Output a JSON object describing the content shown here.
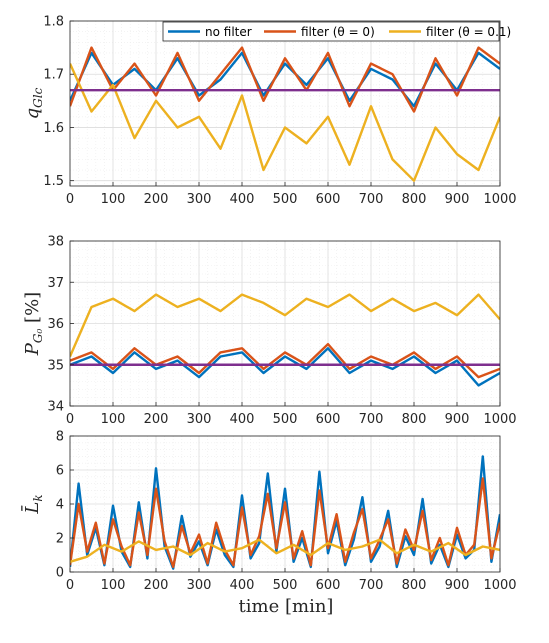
{
  "colors": {
    "no_filter": "#0072BD",
    "filter_0": "#D95319",
    "filter_01": "#EDB120",
    "reference": "#7E2F8E"
  },
  "legend": {
    "placement": "top-right",
    "items": [
      {
        "label": "no filter",
        "color": "#0072BD"
      },
      {
        "label": "filter (θ = 0)",
        "color": "#D95319"
      },
      {
        "label": "filter (θ = 0.1)",
        "color": "#EDB120"
      }
    ]
  },
  "chart_data": [
    {
      "type": "line",
      "ylabel_main": "q",
      "ylabel_sub": "Glc",
      "xlabel": "",
      "xlim": [
        0,
        1000
      ],
      "ylim": [
        1.49,
        1.8
      ],
      "xticks": [
        0,
        100,
        200,
        300,
        400,
        500,
        600,
        700,
        800,
        900,
        1000
      ],
      "yticks": [
        1.5,
        1.6,
        1.7,
        1.8
      ],
      "ytick_labels": [
        "1.5",
        "1.6",
        "1.7",
        "1.8"
      ],
      "grid": true,
      "reference": 1.67,
      "series": [
        {
          "name": "no filter",
          "key": "no_filter",
          "x": [
            0,
            50,
            100,
            150,
            200,
            250,
            300,
            350,
            400,
            450,
            500,
            550,
            600,
            650,
            700,
            750,
            800,
            850,
            900,
            950,
            1000
          ],
          "values": [
            1.65,
            1.74,
            1.68,
            1.71,
            1.67,
            1.73,
            1.66,
            1.69,
            1.74,
            1.66,
            1.72,
            1.68,
            1.73,
            1.65,
            1.71,
            1.69,
            1.64,
            1.72,
            1.67,
            1.74,
            1.71
          ]
        },
        {
          "name": "filter (θ = 0)",
          "key": "filter_0",
          "x": [
            0,
            50,
            100,
            150,
            200,
            250,
            300,
            350,
            400,
            450,
            500,
            550,
            600,
            650,
            700,
            750,
            800,
            850,
            900,
            950,
            1000
          ],
          "values": [
            1.64,
            1.75,
            1.67,
            1.72,
            1.66,
            1.74,
            1.65,
            1.7,
            1.75,
            1.65,
            1.73,
            1.67,
            1.74,
            1.64,
            1.72,
            1.7,
            1.63,
            1.73,
            1.66,
            1.75,
            1.72
          ]
        },
        {
          "name": "filter (θ = 0.1)",
          "key": "filter_01",
          "x": [
            0,
            50,
            100,
            150,
            200,
            250,
            300,
            350,
            400,
            450,
            500,
            550,
            600,
            650,
            700,
            750,
            800,
            850,
            900,
            950,
            1000
          ],
          "values": [
            1.72,
            1.63,
            1.68,
            1.58,
            1.65,
            1.6,
            1.62,
            1.56,
            1.66,
            1.52,
            1.6,
            1.57,
            1.62,
            1.53,
            1.64,
            1.54,
            1.5,
            1.6,
            1.55,
            1.52,
            1.62
          ]
        }
      ]
    },
    {
      "type": "line",
      "ylabel_main": "P",
      "ylabel_sub": "G₀",
      "ylabel_unit": "[%]",
      "xlabel": "",
      "xlim": [
        0,
        1000
      ],
      "ylim": [
        34,
        38
      ],
      "xticks": [
        0,
        100,
        200,
        300,
        400,
        500,
        600,
        700,
        800,
        900,
        1000
      ],
      "yticks": [
        34,
        35,
        36,
        37,
        38
      ],
      "ytick_labels": [
        "34",
        "35",
        "36",
        "37",
        "38"
      ],
      "grid": true,
      "reference": 35.0,
      "series": [
        {
          "name": "no filter",
          "key": "no_filter",
          "x": [
            0,
            50,
            100,
            150,
            200,
            250,
            300,
            350,
            400,
            450,
            500,
            550,
            600,
            650,
            700,
            750,
            800,
            850,
            900,
            950,
            1000
          ],
          "values": [
            35.0,
            35.2,
            34.8,
            35.3,
            34.9,
            35.1,
            34.7,
            35.2,
            35.3,
            34.8,
            35.2,
            34.9,
            35.4,
            34.8,
            35.1,
            34.9,
            35.2,
            34.8,
            35.1,
            34.5,
            34.8
          ]
        },
        {
          "name": "filter (θ = 0)",
          "key": "filter_0",
          "x": [
            0,
            50,
            100,
            150,
            200,
            250,
            300,
            350,
            400,
            450,
            500,
            550,
            600,
            650,
            700,
            750,
            800,
            850,
            900,
            950,
            1000
          ],
          "values": [
            35.1,
            35.3,
            34.9,
            35.4,
            35.0,
            35.2,
            34.8,
            35.3,
            35.4,
            34.9,
            35.3,
            35.0,
            35.5,
            34.9,
            35.2,
            35.0,
            35.3,
            34.9,
            35.2,
            34.7,
            34.9
          ]
        },
        {
          "name": "filter (θ = 0.1)",
          "key": "filter_01",
          "x": [
            0,
            50,
            100,
            150,
            200,
            250,
            300,
            350,
            400,
            450,
            500,
            550,
            600,
            650,
            700,
            750,
            800,
            850,
            900,
            950,
            1000
          ],
          "values": [
            35.2,
            36.4,
            36.6,
            36.3,
            36.7,
            36.4,
            36.6,
            36.3,
            36.7,
            36.5,
            36.2,
            36.6,
            36.4,
            36.7,
            36.3,
            36.6,
            36.3,
            36.5,
            36.2,
            36.7,
            36.1
          ]
        }
      ]
    },
    {
      "type": "line",
      "ylabel_main": "L̄",
      "ylabel_sub": "k",
      "xlabel": "time [min]",
      "xlim": [
        0,
        1000
      ],
      "ylim": [
        0,
        8
      ],
      "xticks": [
        0,
        100,
        200,
        300,
        400,
        500,
        600,
        700,
        800,
        900,
        1000
      ],
      "yticks": [
        0,
        2,
        4,
        6,
        8
      ],
      "ytick_labels": [
        "0",
        "2",
        "4",
        "6",
        "8"
      ],
      "grid": true,
      "series": [
        {
          "name": "no filter",
          "key": "no_filter",
          "x": [
            0,
            20,
            40,
            60,
            80,
            100,
            120,
            140,
            160,
            180,
            200,
            220,
            240,
            260,
            280,
            300,
            320,
            340,
            360,
            380,
            400,
            420,
            440,
            460,
            480,
            500,
            520,
            540,
            560,
            580,
            600,
            620,
            640,
            660,
            680,
            700,
            720,
            740,
            760,
            780,
            800,
            820,
            840,
            860,
            880,
            900,
            920,
            940,
            960,
            980,
            1000
          ],
          "values": [
            0.3,
            5.2,
            1.0,
            2.6,
            0.4,
            3.9,
            1.2,
            0.3,
            4.1,
            0.8,
            6.1,
            1.5,
            0.2,
            3.3,
            0.9,
            1.8,
            0.4,
            2.5,
            1.0,
            0.3,
            4.5,
            0.8,
            1.7,
            5.8,
            1.2,
            4.9,
            0.6,
            2.0,
            0.3,
            5.9,
            1.1,
            3.0,
            0.4,
            1.9,
            4.4,
            0.6,
            1.5,
            3.6,
            0.3,
            2.1,
            1.0,
            4.3,
            0.5,
            1.6,
            0.3,
            2.2,
            0.8,
            1.3,
            6.8,
            0.6,
            3.4
          ]
        },
        {
          "name": "filter (θ = 0)",
          "key": "filter_0",
          "x": [
            0,
            20,
            40,
            60,
            80,
            100,
            120,
            140,
            160,
            180,
            200,
            220,
            240,
            260,
            280,
            300,
            320,
            340,
            360,
            380,
            400,
            420,
            440,
            460,
            480,
            500,
            520,
            540,
            560,
            580,
            600,
            620,
            640,
            660,
            680,
            700,
            720,
            740,
            760,
            780,
            800,
            820,
            840,
            860,
            880,
            900,
            920,
            940,
            960,
            980,
            1000
          ],
          "values": [
            0.4,
            4.0,
            1.2,
            2.9,
            0.5,
            3.1,
            1.5,
            0.4,
            3.5,
            1.0,
            4.9,
            1.8,
            0.3,
            2.7,
            1.1,
            2.2,
            0.5,
            2.9,
            1.3,
            0.4,
            3.8,
            1.0,
            2.1,
            4.6,
            1.4,
            4.1,
            0.8,
            2.4,
            0.4,
            4.8,
            1.4,
            3.4,
            0.6,
            2.3,
            3.7,
            0.8,
            1.9,
            3.1,
            0.5,
            2.5,
            1.3,
            3.6,
            0.7,
            2.0,
            0.4,
            2.6,
            1.0,
            1.6,
            5.5,
            0.8,
            2.9
          ]
        },
        {
          "name": "filter (θ = 0.1)",
          "key": "filter_01",
          "x": [
            0,
            40,
            80,
            120,
            160,
            200,
            240,
            280,
            320,
            360,
            400,
            440,
            480,
            520,
            560,
            600,
            640,
            680,
            720,
            760,
            800,
            840,
            880,
            920,
            960,
            1000
          ],
          "values": [
            0.6,
            0.9,
            1.6,
            1.2,
            1.8,
            1.3,
            1.5,
            1.0,
            1.7,
            1.2,
            1.4,
            1.9,
            1.1,
            1.6,
            1.0,
            1.7,
            1.3,
            1.5,
            1.9,
            1.1,
            1.6,
            1.2,
            1.7,
            1.0,
            1.5,
            1.3
          ]
        }
      ]
    }
  ]
}
